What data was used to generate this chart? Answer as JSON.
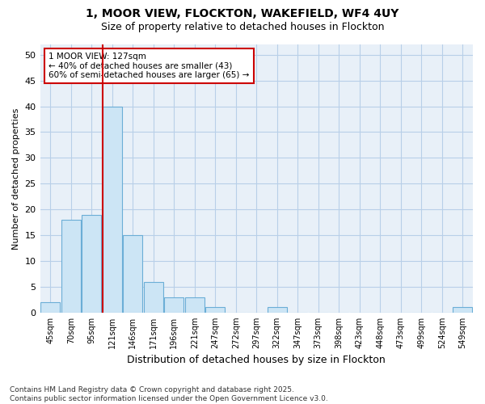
{
  "title_line1": "1, MOOR VIEW, FLOCKTON, WAKEFIELD, WF4 4UY",
  "title_line2": "Size of property relative to detached houses in Flockton",
  "xlabel": "Distribution of detached houses by size in Flockton",
  "ylabel": "Number of detached properties",
  "categories": [
    "45sqm",
    "70sqm",
    "95sqm",
    "121sqm",
    "146sqm",
    "171sqm",
    "196sqm",
    "221sqm",
    "247sqm",
    "272sqm",
    "297sqm",
    "322sqm",
    "347sqm",
    "373sqm",
    "398sqm",
    "423sqm",
    "448sqm",
    "473sqm",
    "499sqm",
    "524sqm",
    "549sqm"
  ],
  "values": [
    2,
    18,
    19,
    40,
    15,
    6,
    3,
    3,
    1,
    0,
    0,
    1,
    0,
    0,
    0,
    0,
    0,
    0,
    0,
    0,
    1
  ],
  "bar_color": "#cce5f5",
  "bar_edge_color": "#6baed6",
  "vline_color": "#cc0000",
  "vline_index": 3,
  "annotation_text": "1 MOOR VIEW: 127sqm\n← 40% of detached houses are smaller (43)\n60% of semi-detached houses are larger (65) →",
  "annotation_box_facecolor": "#ffffff",
  "annotation_box_edgecolor": "#cc0000",
  "ylim": [
    0,
    52
  ],
  "yticks": [
    0,
    5,
    10,
    15,
    20,
    25,
    30,
    35,
    40,
    45,
    50
  ],
  "grid_color": "#b8cfe8",
  "bg_color": "#e8f0f8",
  "plot_bg_color": "#e8f0f8",
  "footnote": "Contains HM Land Registry data © Crown copyright and database right 2025.\nContains public sector information licensed under the Open Government Licence v3.0."
}
